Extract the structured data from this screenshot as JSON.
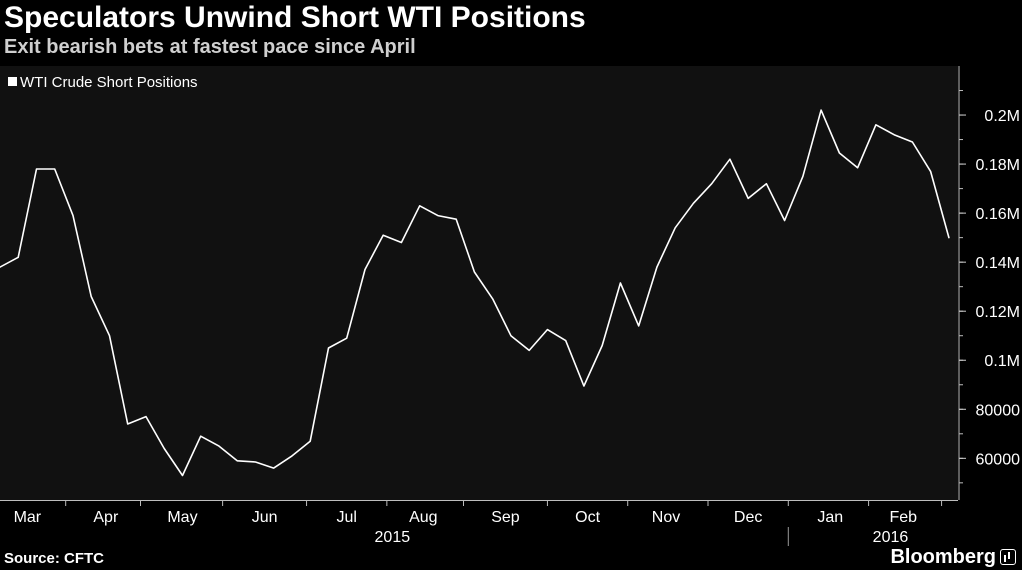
{
  "header": {
    "title": "Speculators Unwind Short WTI Positions",
    "subtitle": "Exit bearish bets at fastest pace since April"
  },
  "footer": {
    "source": "Source: CFTC",
    "brand": "Bloomberg",
    "brand_icon": "bar-chart-icon"
  },
  "colors": {
    "background": "#000000",
    "plot_background": "#111111",
    "line": "#ffffff",
    "text": "#ffffff",
    "grid": "#2a2a2a"
  },
  "chart_data": {
    "type": "line",
    "title": "Speculators Unwind Short WTI Positions",
    "subtitle": "Exit bearish bets at fastest pace since April",
    "legend": {
      "entries": [
        "WTI Crude Short Positions"
      ],
      "placement": "top-left"
    },
    "grid": false,
    "y_axis": {
      "position": "right",
      "ylim": [
        43000,
        220000
      ],
      "ticks": [
        60000,
        80000,
        100000,
        120000,
        140000,
        160000,
        180000,
        200000
      ],
      "tick_labels": [
        "60000",
        "80000",
        "0.1M",
        "0.12M",
        "0.14M",
        "0.16M",
        "0.18M",
        "0.2M"
      ]
    },
    "x_axis": {
      "month_labels": [
        "Mar",
        "Apr",
        "May",
        "Jun",
        "Jul",
        "Aug",
        "Sep",
        "Oct",
        "Nov",
        "Dec",
        "Jan",
        "Feb"
      ],
      "month_label_weeks": [
        1.5,
        5.8,
        10,
        14.5,
        19,
        23.2,
        27.7,
        32.2,
        36.5,
        41,
        45.5,
        49.5
      ],
      "month_boundary_weeks": [
        3.6,
        7.7,
        12.2,
        16.8,
        21.2,
        25.4,
        30,
        34.4,
        38.8,
        43.2,
        47.6,
        51.6
      ],
      "year_labels": [
        "2015",
        "2016"
      ],
      "year_label_weeks": [
        21.5,
        48.8
      ],
      "year_divider_week": 43.2,
      "xlim": [
        0,
        52.5
      ]
    },
    "series": [
      {
        "name": "WTI Crude Short Positions",
        "x": [
          0,
          1,
          2,
          3,
          4,
          5,
          6,
          7,
          8,
          9,
          10,
          11,
          12,
          13,
          14,
          15,
          16,
          17,
          18,
          19,
          20,
          21,
          22,
          23,
          24,
          25,
          26,
          27,
          28,
          29,
          30,
          31,
          32,
          33,
          34,
          35,
          36,
          37,
          38,
          39,
          40,
          41,
          42,
          43,
          44,
          45,
          46,
          47,
          48,
          49,
          50,
          51,
          52
        ],
        "values": [
          138000,
          142000,
          178000,
          178000,
          159000,
          126000,
          110000,
          74000,
          77000,
          64000,
          53000,
          69000,
          65000,
          59000,
          58500,
          56000,
          61000,
          67000,
          105000,
          109000,
          137000,
          151000,
          148000,
          163000,
          159000,
          157500,
          136000,
          125000,
          110000,
          104000,
          112500,
          108000,
          89500,
          106000,
          131500,
          114000,
          138000,
          154000,
          164000,
          172000,
          182000,
          166000,
          172000,
          157000,
          175000,
          202000,
          184500,
          178500,
          196000,
          192000,
          189000,
          177000,
          150000
        ]
      }
    ]
  }
}
